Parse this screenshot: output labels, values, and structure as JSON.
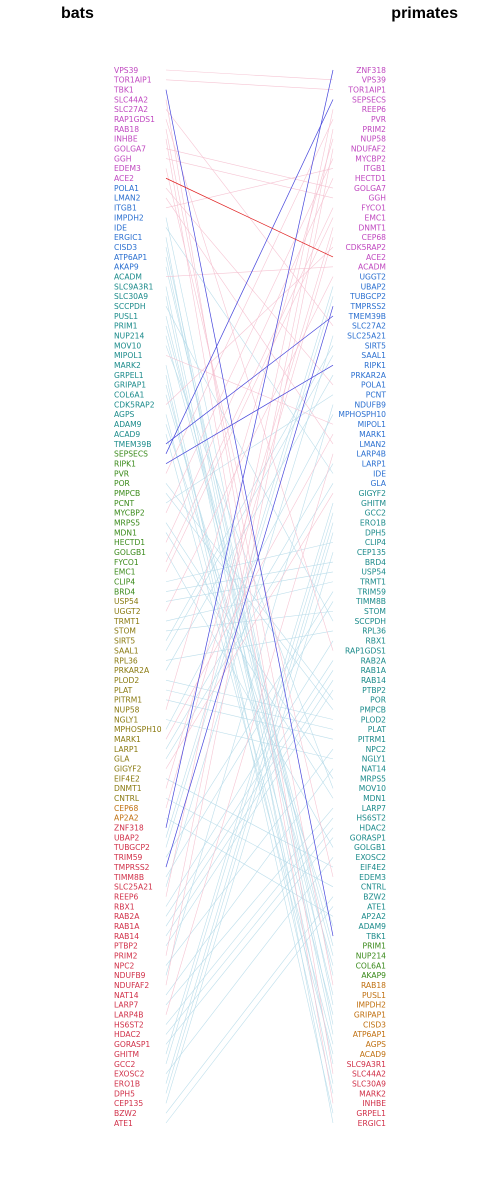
{
  "chart_data": {
    "type": "tanglegram",
    "left_title": "bats",
    "right_title": "primates",
    "colors": {
      "magenta": "#c048c0",
      "purple": "#a040c8",
      "blue": "#2a6fd0",
      "teal": "#1a8a8a",
      "green": "#3a8a1a",
      "olive": "#8a7a10",
      "orange": "#c07010",
      "red": "#d03048",
      "crimson": "#d03048",
      "link_default": "#b6dbe9",
      "link_pink": "#f5bfcf",
      "link_blue": "#4646dc",
      "link_red": "#e02020"
    },
    "left": [
      {
        "label": "VPS39",
        "color": "magenta"
      },
      {
        "label": "TOR1AIP1",
        "color": "magenta"
      },
      {
        "label": "TBK1",
        "color": "magenta"
      },
      {
        "label": "SLC44A2",
        "color": "magenta"
      },
      {
        "label": "SLC27A2",
        "color": "magenta"
      },
      {
        "label": "RAP1GDS1",
        "color": "magenta"
      },
      {
        "label": "RAB18",
        "color": "magenta"
      },
      {
        "label": "INHBE",
        "color": "magenta"
      },
      {
        "label": "GOLGA7",
        "color": "magenta"
      },
      {
        "label": "GGH",
        "color": "magenta"
      },
      {
        "label": "EDEM3",
        "color": "magenta"
      },
      {
        "label": "ACE2",
        "color": "magenta"
      },
      {
        "label": "POLA1",
        "color": "blue"
      },
      {
        "label": "LMAN2",
        "color": "blue"
      },
      {
        "label": "ITGB1",
        "color": "blue"
      },
      {
        "label": "IMPDH2",
        "color": "blue"
      },
      {
        "label": "IDE",
        "color": "blue"
      },
      {
        "label": "ERGIC1",
        "color": "blue"
      },
      {
        "label": "CISD3",
        "color": "blue"
      },
      {
        "label": "ATP6AP1",
        "color": "blue"
      },
      {
        "label": "AKAP9",
        "color": "blue"
      },
      {
        "label": "ACADM",
        "color": "teal"
      },
      {
        "label": "SLC9A3R1",
        "color": "teal"
      },
      {
        "label": "SLC30A9",
        "color": "teal"
      },
      {
        "label": "SCCPDH",
        "color": "teal"
      },
      {
        "label": "PUSL1",
        "color": "teal"
      },
      {
        "label": "PRIM1",
        "color": "teal"
      },
      {
        "label": "NUP214",
        "color": "teal"
      },
      {
        "label": "MOV10",
        "color": "teal"
      },
      {
        "label": "MIPOL1",
        "color": "teal"
      },
      {
        "label": "MARK2",
        "color": "teal"
      },
      {
        "label": "GRPEL1",
        "color": "teal"
      },
      {
        "label": "GRIPAP1",
        "color": "teal"
      },
      {
        "label": "COL6A1",
        "color": "teal"
      },
      {
        "label": "CDK5RAP2",
        "color": "teal"
      },
      {
        "label": "AGPS",
        "color": "teal"
      },
      {
        "label": "ADAM9",
        "color": "teal"
      },
      {
        "label": "ACAD9",
        "color": "teal"
      },
      {
        "label": "TMEM39B",
        "color": "teal"
      },
      {
        "label": "SEPSECS",
        "color": "green"
      },
      {
        "label": "RIPK1",
        "color": "green"
      },
      {
        "label": "PVR",
        "color": "green"
      },
      {
        "label": "POR",
        "color": "green"
      },
      {
        "label": "PMPCB",
        "color": "green"
      },
      {
        "label": "PCNT",
        "color": "green"
      },
      {
        "label": "MYCBP2",
        "color": "green"
      },
      {
        "label": "MRPS5",
        "color": "green"
      },
      {
        "label": "MDN1",
        "color": "green"
      },
      {
        "label": "HECTD1",
        "color": "green"
      },
      {
        "label": "GOLGB1",
        "color": "green"
      },
      {
        "label": "FYCO1",
        "color": "green"
      },
      {
        "label": "EMC1",
        "color": "green"
      },
      {
        "label": "CLIP4",
        "color": "green"
      },
      {
        "label": "BRD4",
        "color": "green"
      },
      {
        "label": "USP54",
        "color": "olive"
      },
      {
        "label": "UGGT2",
        "color": "olive"
      },
      {
        "label": "TRMT1",
        "color": "olive"
      },
      {
        "label": "STOM",
        "color": "olive"
      },
      {
        "label": "SIRT5",
        "color": "olive"
      },
      {
        "label": "SAAL1",
        "color": "olive"
      },
      {
        "label": "RPL36",
        "color": "olive"
      },
      {
        "label": "PRKAR2A",
        "color": "olive"
      },
      {
        "label": "PLOD2",
        "color": "olive"
      },
      {
        "label": "PLAT",
        "color": "olive"
      },
      {
        "label": "PITRM1",
        "color": "olive"
      },
      {
        "label": "NUP58",
        "color": "olive"
      },
      {
        "label": "NGLY1",
        "color": "olive"
      },
      {
        "label": "MPHOSPH10",
        "color": "olive"
      },
      {
        "label": "MARK1",
        "color": "olive"
      },
      {
        "label": "LARP1",
        "color": "olive"
      },
      {
        "label": "GLA",
        "color": "olive"
      },
      {
        "label": "GIGYF2",
        "color": "olive"
      },
      {
        "label": "EIF4E2",
        "color": "olive"
      },
      {
        "label": "DNMT1",
        "color": "olive"
      },
      {
        "label": "CNTRL",
        "color": "olive"
      },
      {
        "label": "CEP68",
        "color": "orange"
      },
      {
        "label": "AP2A2",
        "color": "orange"
      },
      {
        "label": "ZNF318",
        "color": "red"
      },
      {
        "label": "UBAP2",
        "color": "red"
      },
      {
        "label": "TUBGCP2",
        "color": "red"
      },
      {
        "label": "TRIM59",
        "color": "red"
      },
      {
        "label": "TMPRSS2",
        "color": "red"
      },
      {
        "label": "TIMM8B",
        "color": "red"
      },
      {
        "label": "SLC25A21",
        "color": "red"
      },
      {
        "label": "REEP6",
        "color": "red"
      },
      {
        "label": "RBX1",
        "color": "red"
      },
      {
        "label": "RAB2A",
        "color": "red"
      },
      {
        "label": "RAB1A",
        "color": "red"
      },
      {
        "label": "RAB14",
        "color": "red"
      },
      {
        "label": "PTBP2",
        "color": "red"
      },
      {
        "label": "PRIM2",
        "color": "red"
      },
      {
        "label": "NPC2",
        "color": "red"
      },
      {
        "label": "NDUFB9",
        "color": "red"
      },
      {
        "label": "NDUFAF2",
        "color": "red"
      },
      {
        "label": "NAT14",
        "color": "red"
      },
      {
        "label": "LARP7",
        "color": "red"
      },
      {
        "label": "LARP4B",
        "color": "red"
      },
      {
        "label": "HS6ST2",
        "color": "red"
      },
      {
        "label": "HDAC2",
        "color": "red"
      },
      {
        "label": "GORASP1",
        "color": "red"
      },
      {
        "label": "GHITM",
        "color": "red"
      },
      {
        "label": "GCC2",
        "color": "red"
      },
      {
        "label": "EXOSC2",
        "color": "red"
      },
      {
        "label": "ERO1B",
        "color": "red"
      },
      {
        "label": "DPH5",
        "color": "red"
      },
      {
        "label": "CEP135",
        "color": "red"
      },
      {
        "label": "BZW2",
        "color": "red"
      },
      {
        "label": "ATE1",
        "color": "red"
      }
    ],
    "right": [
      {
        "label": "ZNF318",
        "color": "magenta"
      },
      {
        "label": "VPS39",
        "color": "magenta"
      },
      {
        "label": "TOR1AIP1",
        "color": "magenta"
      },
      {
        "label": "SEPSECS",
        "color": "magenta"
      },
      {
        "label": "REEP6",
        "color": "magenta"
      },
      {
        "label": "PVR",
        "color": "magenta"
      },
      {
        "label": "PRIM2",
        "color": "magenta"
      },
      {
        "label": "NUP58",
        "color": "magenta"
      },
      {
        "label": "NDUFAF2",
        "color": "magenta"
      },
      {
        "label": "MYCBP2",
        "color": "magenta"
      },
      {
        "label": "ITGB1",
        "color": "magenta"
      },
      {
        "label": "HECTD1",
        "color": "magenta"
      },
      {
        "label": "GOLGA7",
        "color": "magenta"
      },
      {
        "label": "GGH",
        "color": "magenta"
      },
      {
        "label": "FYCO1",
        "color": "magenta"
      },
      {
        "label": "EMC1",
        "color": "magenta"
      },
      {
        "label": "DNMT1",
        "color": "magenta"
      },
      {
        "label": "CEP68",
        "color": "magenta"
      },
      {
        "label": "CDK5RAP2",
        "color": "magenta"
      },
      {
        "label": "ACE2",
        "color": "magenta"
      },
      {
        "label": "ACADM",
        "color": "magenta"
      },
      {
        "label": "UGGT2",
        "color": "blue"
      },
      {
        "label": "UBAP2",
        "color": "blue"
      },
      {
        "label": "TUBGCP2",
        "color": "blue"
      },
      {
        "label": "TMPRSS2",
        "color": "blue"
      },
      {
        "label": "TMEM39B",
        "color": "blue"
      },
      {
        "label": "SLC27A2",
        "color": "blue"
      },
      {
        "label": "SLC25A21",
        "color": "blue"
      },
      {
        "label": "SIRT5",
        "color": "blue"
      },
      {
        "label": "SAAL1",
        "color": "blue"
      },
      {
        "label": "RIPK1",
        "color": "blue"
      },
      {
        "label": "PRKAR2A",
        "color": "blue"
      },
      {
        "label": "POLA1",
        "color": "blue"
      },
      {
        "label": "PCNT",
        "color": "blue"
      },
      {
        "label": "NDUFB9",
        "color": "blue"
      },
      {
        "label": "MPHOSPH10",
        "color": "blue"
      },
      {
        "label": "MIPOL1",
        "color": "blue"
      },
      {
        "label": "MARK1",
        "color": "blue"
      },
      {
        "label": "LMAN2",
        "color": "blue"
      },
      {
        "label": "LARP4B",
        "color": "blue"
      },
      {
        "label": "LARP1",
        "color": "blue"
      },
      {
        "label": "IDE",
        "color": "blue"
      },
      {
        "label": "GLA",
        "color": "blue"
      },
      {
        "label": "GIGYF2",
        "color": "teal"
      },
      {
        "label": "GHITM",
        "color": "teal"
      },
      {
        "label": "GCC2",
        "color": "teal"
      },
      {
        "label": "ERO1B",
        "color": "teal"
      },
      {
        "label": "DPH5",
        "color": "teal"
      },
      {
        "label": "CLIP4",
        "color": "teal"
      },
      {
        "label": "CEP135",
        "color": "teal"
      },
      {
        "label": "BRD4",
        "color": "teal"
      },
      {
        "label": "USP54",
        "color": "teal"
      },
      {
        "label": "TRMT1",
        "color": "teal"
      },
      {
        "label": "TRIM59",
        "color": "teal"
      },
      {
        "label": "TIMM8B",
        "color": "teal"
      },
      {
        "label": "STOM",
        "color": "teal"
      },
      {
        "label": "SCCPDH",
        "color": "teal"
      },
      {
        "label": "RPL36",
        "color": "teal"
      },
      {
        "label": "RBX1",
        "color": "teal"
      },
      {
        "label": "RAP1GDS1",
        "color": "teal"
      },
      {
        "label": "RAB2A",
        "color": "teal"
      },
      {
        "label": "RAB1A",
        "color": "teal"
      },
      {
        "label": "RAB14",
        "color": "teal"
      },
      {
        "label": "PTBP2",
        "color": "teal"
      },
      {
        "label": "POR",
        "color": "teal"
      },
      {
        "label": "PMPCB",
        "color": "teal"
      },
      {
        "label": "PLOD2",
        "color": "teal"
      },
      {
        "label": "PLAT",
        "color": "teal"
      },
      {
        "label": "PITRM1",
        "color": "teal"
      },
      {
        "label": "NPC2",
        "color": "teal"
      },
      {
        "label": "NGLY1",
        "color": "teal"
      },
      {
        "label": "NAT14",
        "color": "teal"
      },
      {
        "label": "MRPS5",
        "color": "teal"
      },
      {
        "label": "MOV10",
        "color": "teal"
      },
      {
        "label": "MDN1",
        "color": "teal"
      },
      {
        "label": "LARP7",
        "color": "teal"
      },
      {
        "label": "HS6ST2",
        "color": "teal"
      },
      {
        "label": "HDAC2",
        "color": "teal"
      },
      {
        "label": "GORASP1",
        "color": "teal"
      },
      {
        "label": "GOLGB1",
        "color": "teal"
      },
      {
        "label": "EXOSC2",
        "color": "teal"
      },
      {
        "label": "EIF4E2",
        "color": "teal"
      },
      {
        "label": "EDEM3",
        "color": "teal"
      },
      {
        "label": "CNTRL",
        "color": "teal"
      },
      {
        "label": "BZW2",
        "color": "teal"
      },
      {
        "label": "ATE1",
        "color": "teal"
      },
      {
        "label": "AP2A2",
        "color": "teal"
      },
      {
        "label": "ADAM9",
        "color": "teal"
      },
      {
        "label": "TBK1",
        "color": "teal"
      },
      {
        "label": "PRIM1",
        "color": "green"
      },
      {
        "label": "NUP214",
        "color": "green"
      },
      {
        "label": "COL6A1",
        "color": "green"
      },
      {
        "label": "AKAP9",
        "color": "green"
      },
      {
        "label": "RAB18",
        "color": "orange"
      },
      {
        "label": "PUSL1",
        "color": "orange"
      },
      {
        "label": "IMPDH2",
        "color": "orange"
      },
      {
        "label": "GRIPAP1",
        "color": "orange"
      },
      {
        "label": "CISD3",
        "color": "orange"
      },
      {
        "label": "ATP6AP1",
        "color": "orange"
      },
      {
        "label": "AGPS",
        "color": "orange"
      },
      {
        "label": "ACAD9",
        "color": "orange"
      },
      {
        "label": "SLC9A3R1",
        "color": "crimson"
      },
      {
        "label": "SLC44A2",
        "color": "crimson"
      },
      {
        "label": "SLC30A9",
        "color": "crimson"
      },
      {
        "label": "MARK2",
        "color": "crimson"
      },
      {
        "label": "INHBE",
        "color": "crimson"
      },
      {
        "label": "GRPEL1",
        "color": "crimson"
      },
      {
        "label": "ERGIC1",
        "color": "crimson"
      }
    ],
    "highlight_links": {
      "blue": [
        "TBK1",
        "RIPK1",
        "SEPSECS",
        "ZNF318",
        "TMPRSS2",
        "TMEM39B"
      ],
      "red": [
        "ACE2"
      ],
      "pink": [
        "VPS39",
        "TOR1AIP1",
        "SLC44A2",
        "SLC27A2",
        "RAP1GDS1",
        "RAB18",
        "INHBE",
        "GOLGA7",
        "GGH",
        "EDEM3",
        "POLA1",
        "CDK5RAP2",
        "ACADM",
        "MYCBP2",
        "PVR",
        "HECTD1",
        "FYCO1",
        "EMC1",
        "GIGYF2",
        "UGGT2",
        "CEP68",
        "DNMT1",
        "PRIM2",
        "REEP6",
        "NDUFAF2",
        "NUP58",
        "ITGB1",
        "MIPOL1",
        "LMAN2",
        "MARK1",
        "LARP4B"
      ]
    }
  }
}
